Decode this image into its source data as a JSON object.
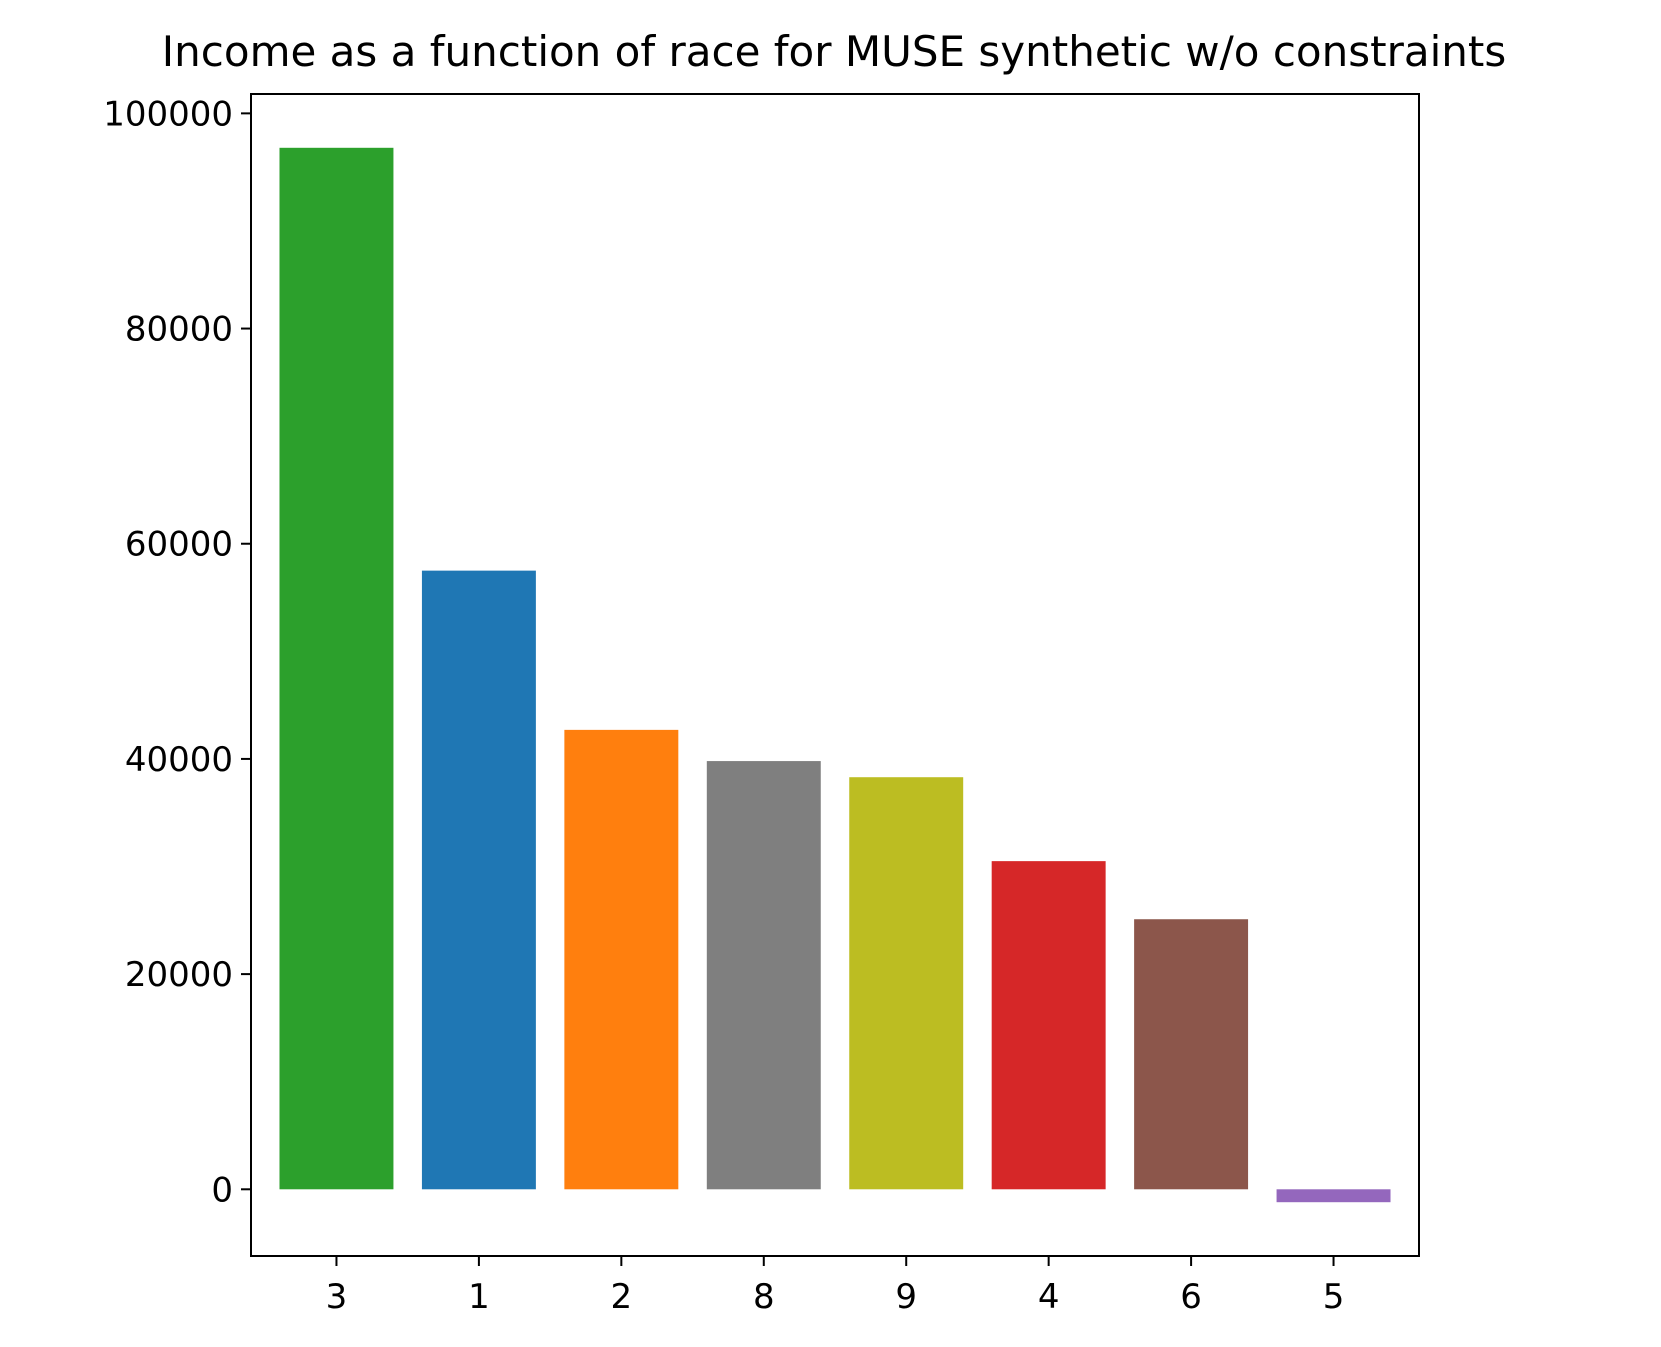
{
  "chart_data": {
    "type": "bar",
    "title": "Income as a function of race for MUSE synthetic w/o constraints",
    "xlabel": "",
    "ylabel": "",
    "categories": [
      "3",
      "1",
      "2",
      "8",
      "9",
      "4",
      "6",
      "5"
    ],
    "values": [
      96800,
      57500,
      42700,
      39800,
      38300,
      30500,
      25100,
      -1200
    ],
    "colors": [
      "#2ca02c",
      "#1f77b4",
      "#ff7f0e",
      "#7f7f7f",
      "#bcbd22",
      "#d62728",
      "#8c564b",
      "#9467bd"
    ],
    "ylim": [
      -6200,
      101800
    ],
    "yticks": [
      0,
      20000,
      40000,
      60000,
      80000,
      100000
    ],
    "ytick_labels": [
      "0",
      "20000",
      "40000",
      "60000",
      "80000",
      "100000"
    ],
    "grid": false,
    "legend": "none"
  }
}
